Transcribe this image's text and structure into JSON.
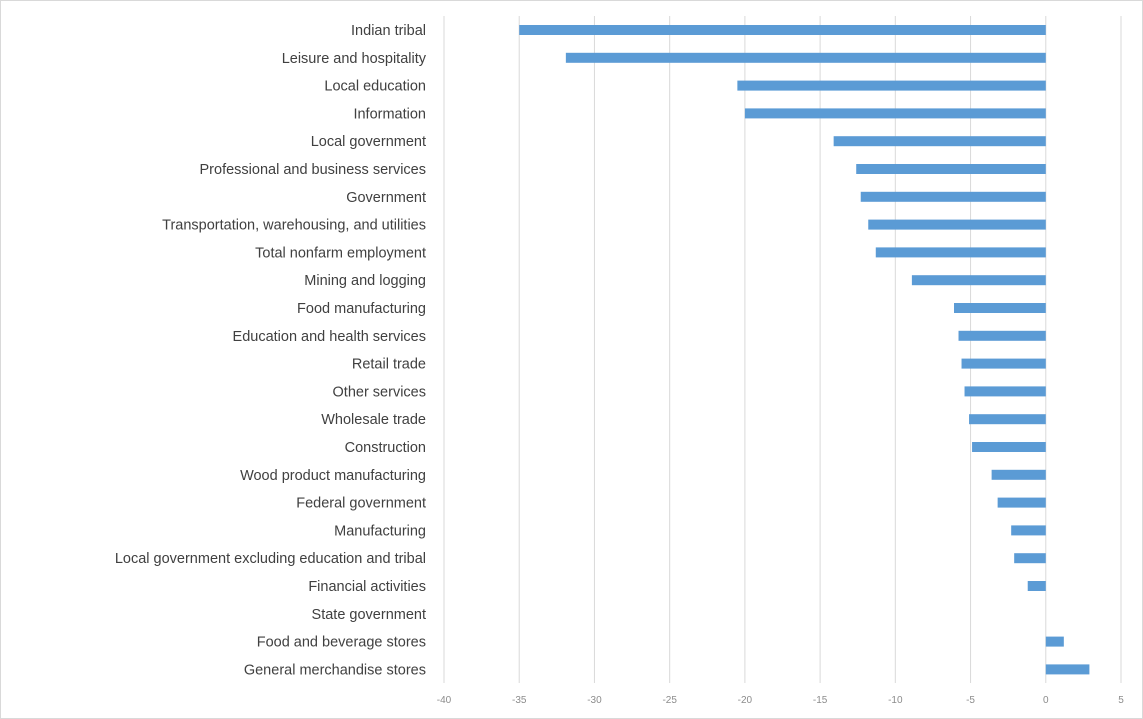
{
  "chart_data": {
    "type": "bar",
    "orientation": "horizontal",
    "title": "",
    "xlabel": "",
    "ylabel": "",
    "xlim": [
      -40,
      5
    ],
    "x_ticks": [
      -40,
      -35,
      -30,
      -25,
      -20,
      -15,
      -10,
      -5,
      0,
      5
    ],
    "grid": true,
    "bar_color": "#5b9bd5",
    "categories": [
      "Indian tribal",
      "Leisure and hospitality",
      "Local education",
      "Information",
      "Local government",
      "Professional and business services",
      "Government",
      "Transportation, warehousing, and utilities",
      "Total nonfarm employment",
      "Mining and logging",
      "Food manufacturing",
      "Education and health services",
      "Retail trade",
      "Other services",
      "Wholesale trade",
      "Construction",
      "Wood product manufacturing",
      "Federal government",
      "Manufacturing",
      "Local government excluding education and tribal",
      "Financial activities",
      "State government",
      "Food and beverage stores",
      "General merchandise stores"
    ],
    "values": [
      -35.0,
      -31.9,
      -20.5,
      -20.0,
      -14.1,
      -12.6,
      -12.3,
      -11.8,
      -11.3,
      -8.9,
      -6.1,
      -5.8,
      -5.6,
      -5.4,
      -5.1,
      -4.9,
      -3.6,
      -3.2,
      -2.3,
      -2.1,
      -1.2,
      0.0,
      1.2,
      2.9
    ]
  }
}
